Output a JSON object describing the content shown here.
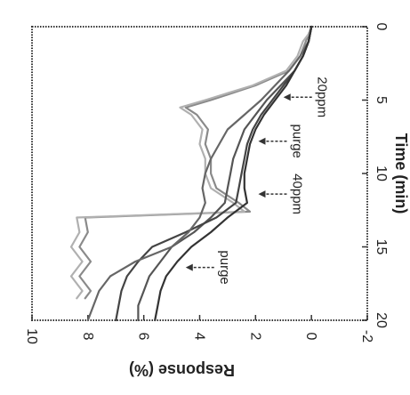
{
  "chart_data": {
    "type": "line",
    "title": "",
    "xlabel": "Time (min)",
    "ylabel": "Response (%)",
    "xlim": [
      0,
      20
    ],
    "ylim": [
      -2,
      10
    ],
    "xticks": [
      "0",
      "5",
      "10",
      "15",
      "20"
    ],
    "yticks": [
      "-2",
      "0",
      "2",
      "4",
      "6",
      "8",
      "10"
    ],
    "grid": false,
    "legend": "none",
    "orientation": "rotated-90-clockwise",
    "series": [
      {
        "color": "#8a8a8a",
        "x": [
          0,
          0.5,
          1,
          2,
          3,
          4,
          5,
          5.5,
          6,
          7,
          8,
          9,
          10,
          11,
          12,
          12.6,
          13,
          14,
          15,
          16,
          17,
          18,
          18.5
        ],
        "y": [
          0,
          0.1,
          0.2,
          0.4,
          0.8,
          2.0,
          3.6,
          4.5,
          4.1,
          3.7,
          3.8,
          3.6,
          3.6,
          3.4,
          2.6,
          2.2,
          8.1,
          8.0,
          8.3,
          7.9,
          8.3,
          7.9,
          8.1
        ]
      },
      {
        "color": "#b0b0b0",
        "x": [
          0,
          0.5,
          1,
          2,
          3,
          4,
          5,
          5.5,
          6,
          7,
          8,
          9,
          10,
          11,
          12,
          12.6,
          13,
          14,
          15,
          16,
          17,
          18,
          18.5
        ],
        "y": [
          0,
          0.1,
          0.3,
          0.5,
          0.9,
          2.1,
          3.8,
          4.7,
          4.3,
          3.9,
          4.0,
          3.8,
          3.8,
          3.6,
          2.8,
          2.4,
          8.4,
          8.3,
          8.6,
          8.2,
          8.6,
          8.2,
          8.4
        ]
      },
      {
        "color": "#555555",
        "x": [
          0,
          1,
          2,
          3,
          4,
          5,
          6,
          7,
          8,
          9,
          10,
          11,
          12,
          13,
          14,
          15,
          16,
          17,
          18,
          19,
          20
        ],
        "y": [
          0,
          0.1,
          0.3,
          0.6,
          1.1,
          1.6,
          2.0,
          2.4,
          2.6,
          2.8,
          2.9,
          3.0,
          3.1,
          3.6,
          4.2,
          5.0,
          5.4,
          5.8,
          6.0,
          6.2,
          6.2
        ]
      },
      {
        "color": "#444444",
        "x": [
          0,
          1,
          2,
          3,
          4,
          5,
          6,
          7,
          8,
          9,
          10,
          11,
          12,
          13,
          14,
          15,
          16,
          17,
          18,
          19,
          20
        ],
        "y": [
          0,
          0.1,
          0.3,
          0.6,
          1.0,
          1.4,
          1.8,
          2.1,
          2.3,
          2.4,
          2.5,
          2.6,
          2.7,
          3.4,
          4.5,
          5.7,
          6.2,
          6.6,
          6.8,
          6.9,
          7.0
        ]
      },
      {
        "color": "#666666",
        "x": [
          0,
          1,
          2,
          3,
          4,
          5,
          6,
          7,
          8,
          9,
          10,
          11,
          12,
          13,
          14,
          15,
          16,
          17,
          18,
          19,
          20
        ],
        "y": [
          0,
          0.1,
          0.4,
          0.8,
          1.3,
          1.8,
          2.4,
          3.0,
          3.3,
          3.6,
          3.8,
          3.9,
          3.8,
          4.0,
          4.4,
          5.0,
          6.3,
          7.2,
          7.6,
          7.8,
          8.0
        ]
      },
      {
        "color": "#333333",
        "x": [
          0,
          1,
          2,
          3,
          4,
          5,
          6,
          7,
          8,
          9,
          10,
          11,
          12,
          13,
          14,
          15,
          16,
          17,
          18,
          19,
          20
        ],
        "y": [
          0,
          0.1,
          0.3,
          0.6,
          0.9,
          1.3,
          1.7,
          2.0,
          2.2,
          2.3,
          2.4,
          2.4,
          2.3,
          3.0,
          3.6,
          4.3,
          4.8,
          5.2,
          5.4,
          5.5,
          5.6
        ]
      }
    ],
    "annotations": [
      {
        "text": "20ppm",
        "x": 4.8,
        "y": -0.4
      },
      {
        "text": "purge",
        "x": 7.8,
        "y": 0.5
      },
      {
        "text": "40ppm",
        "x": 11.4,
        "y": 0.5
      },
      {
        "text": "purge",
        "x": 16.4,
        "y": 3.1
      }
    ]
  }
}
